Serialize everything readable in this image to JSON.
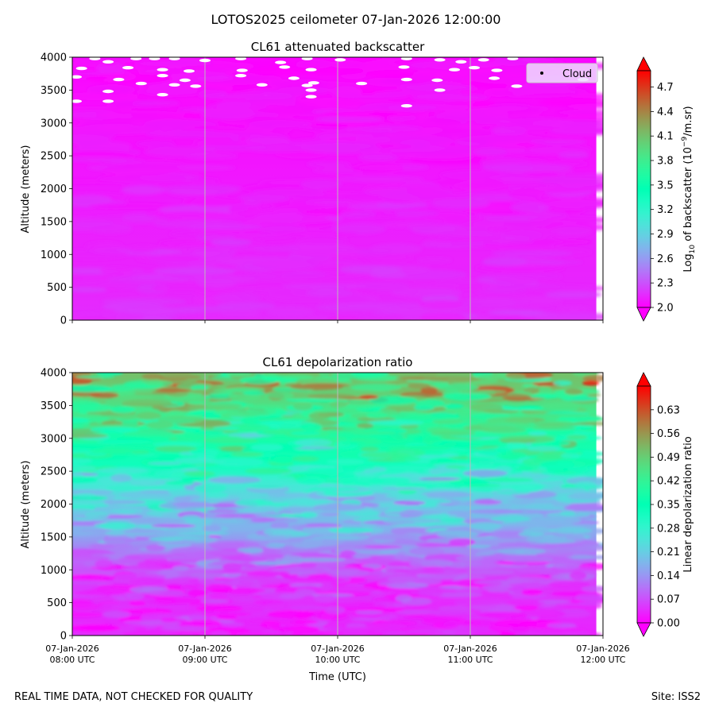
{
  "figure": {
    "suptitle": "LOTOS2025 ceilometer 07-Jan-2026 12:00:00",
    "footer_left": "REAL TIME DATA, NOT CHECKED FOR QUALITY",
    "footer_right": "Site: ISS2"
  },
  "chart_data": [
    {
      "type": "heatmap",
      "title": "CL61 attenuated backscatter",
      "ylabel": "Altitude (meters)",
      "xlabel": "",
      "ylim": [
        0,
        4000
      ],
      "y_ticks": [
        0,
        500,
        1000,
        1500,
        2000,
        2500,
        3000,
        3500,
        4000
      ],
      "x_ticks": [
        "07-Jan-2026 08:00 UTC",
        "07-Jan-2026 09:00 UTC",
        "07-Jan-2026 10:00 UTC",
        "07-Jan-2026 11:00 UTC",
        "07-Jan-2026 12:00 UTC"
      ],
      "x_range_hours": [
        8.0,
        11.95
      ],
      "grid": "vertical lines at hourly ticks",
      "colormap": "rainbow",
      "colorbar": {
        "label": "Log10 of backscatter (10^-9/m.sr)",
        "label_parts": [
          "Log",
          "10",
          " of backscatter (10",
          "−9",
          "/m.sr)"
        ],
        "range": [
          2.0,
          4.9
        ],
        "ticks": [
          2.0,
          2.3,
          2.6,
          2.9,
          3.2,
          3.5,
          3.8,
          4.1,
          4.4,
          4.7
        ],
        "tick_labels": [
          "2.0",
          "2.3",
          "2.6",
          "2.9",
          "3.2",
          "3.5",
          "3.8",
          "4.1",
          "4.4",
          "4.7"
        ]
      },
      "field_profile": [
        {
          "altitude": 0,
          "value": 2.16
        },
        {
          "altitude": 500,
          "value": 2.13
        },
        {
          "altitude": 1000,
          "value": 2.12
        },
        {
          "altitude": 1500,
          "value": 2.11
        },
        {
          "altitude": 2000,
          "value": 2.09
        },
        {
          "altitude": 2500,
          "value": 2.07
        },
        {
          "altitude": 3000,
          "value": 2.05
        },
        {
          "altitude": 4000,
          "value": 2.03
        }
      ],
      "legend": {
        "label": "Cloud",
        "position": "top-right"
      },
      "cloud_points": [
        {
          "time": 8.17,
          "altitude": 3980
        },
        {
          "time": 8.27,
          "altitude": 3930
        },
        {
          "time": 8.48,
          "altitude": 3980
        },
        {
          "time": 8.62,
          "altitude": 3980
        },
        {
          "time": 8.77,
          "altitude": 3980
        },
        {
          "time": 9.0,
          "altitude": 3950
        },
        {
          "time": 9.27,
          "altitude": 3980
        },
        {
          "time": 9.57,
          "altitude": 3920
        },
        {
          "time": 9.77,
          "altitude": 3980
        },
        {
          "time": 10.02,
          "altitude": 3960
        },
        {
          "time": 10.52,
          "altitude": 3980
        },
        {
          "time": 10.77,
          "altitude": 3960
        },
        {
          "time": 10.93,
          "altitude": 3930
        },
        {
          "time": 11.1,
          "altitude": 3960
        },
        {
          "time": 11.32,
          "altitude": 3980
        },
        {
          "time": 8.07,
          "altitude": 3830
        },
        {
          "time": 8.42,
          "altitude": 3840
        },
        {
          "time": 8.68,
          "altitude": 3810
        },
        {
          "time": 8.88,
          "altitude": 3790
        },
        {
          "time": 9.28,
          "altitude": 3800
        },
        {
          "time": 9.6,
          "altitude": 3850
        },
        {
          "time": 9.8,
          "altitude": 3810
        },
        {
          "time": 10.5,
          "altitude": 3850
        },
        {
          "time": 10.88,
          "altitude": 3810
        },
        {
          "time": 11.03,
          "altitude": 3840
        },
        {
          "time": 11.18,
          "altitude": 3680
        },
        {
          "time": 11.2,
          "altitude": 3800
        },
        {
          "time": 8.03,
          "altitude": 3700
        },
        {
          "time": 8.35,
          "altitude": 3660
        },
        {
          "time": 8.52,
          "altitude": 3600
        },
        {
          "time": 8.68,
          "altitude": 3720
        },
        {
          "time": 8.77,
          "altitude": 3580
        },
        {
          "time": 8.85,
          "altitude": 3650
        },
        {
          "time": 8.93,
          "altitude": 3560
        },
        {
          "time": 9.27,
          "altitude": 3720
        },
        {
          "time": 9.43,
          "altitude": 3580
        },
        {
          "time": 9.67,
          "altitude": 3680
        },
        {
          "time": 9.77,
          "altitude": 3570
        },
        {
          "time": 9.82,
          "altitude": 3610
        },
        {
          "time": 10.18,
          "altitude": 3600
        },
        {
          "time": 10.52,
          "altitude": 3660
        },
        {
          "time": 10.75,
          "altitude": 3650
        },
        {
          "time": 10.77,
          "altitude": 3500
        },
        {
          "time": 11.35,
          "altitude": 3560
        },
        {
          "time": 11.85,
          "altitude": 3660
        },
        {
          "time": 8.03,
          "altitude": 3330
        },
        {
          "time": 8.27,
          "altitude": 3480
        },
        {
          "time": 8.27,
          "altitude": 3330
        },
        {
          "time": 8.68,
          "altitude": 3430
        },
        {
          "time": 9.8,
          "altitude": 3500
        },
        {
          "time": 9.8,
          "altitude": 3400
        },
        {
          "time": 10.52,
          "altitude": 3260
        }
      ]
    },
    {
      "type": "heatmap",
      "title": "CL61 depolarization ratio",
      "ylabel": "Altitude (meters)",
      "xlabel": "Time (UTC)",
      "ylim": [
        0,
        4000
      ],
      "y_ticks": [
        0,
        500,
        1000,
        1500,
        2000,
        2500,
        3000,
        3500,
        4000
      ],
      "x_ticks": [
        "07-Jan-2026 08:00 UTC",
        "07-Jan-2026 09:00 UTC",
        "07-Jan-2026 10:00 UTC",
        "07-Jan-2026 11:00 UTC",
        "07-Jan-2026 12:00 UTC"
      ],
      "x_range_hours": [
        8.0,
        11.95
      ],
      "grid": "vertical lines at hourly ticks",
      "colormap": "rainbow",
      "colorbar": {
        "label": "Linear depolarization ratio",
        "range": [
          0.0,
          0.7
        ],
        "ticks": [
          0.0,
          0.07,
          0.14,
          0.21,
          0.28,
          0.35,
          0.42,
          0.49,
          0.56,
          0.63
        ],
        "tick_labels": [
          "0.00",
          "0.07",
          "0.14",
          "0.21",
          "0.28",
          "0.35",
          "0.42",
          "0.49",
          "0.56",
          "0.63"
        ]
      },
      "field_profile": [
        {
          "altitude": 0,
          "value": 0.03
        },
        {
          "altitude": 800,
          "value": 0.05
        },
        {
          "altitude": 1200,
          "value": 0.1
        },
        {
          "altitude": 1600,
          "value": 0.17
        },
        {
          "altitude": 2000,
          "value": 0.2
        },
        {
          "altitude": 2300,
          "value": 0.26
        },
        {
          "altitude": 2600,
          "value": 0.33
        },
        {
          "altitude": 3000,
          "value": 0.38
        },
        {
          "altitude": 3400,
          "value": 0.44
        },
        {
          "altitude": 3800,
          "value": 0.5
        },
        {
          "altitude": 4000,
          "value": 0.51
        }
      ]
    }
  ]
}
